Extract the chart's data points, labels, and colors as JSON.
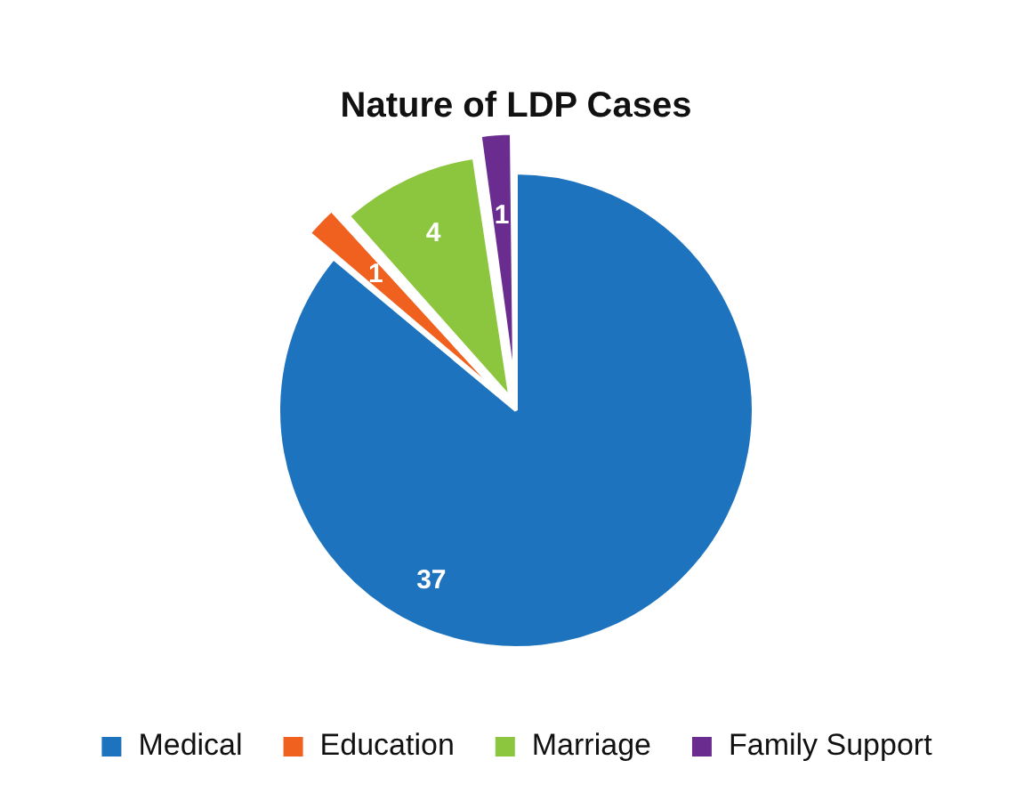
{
  "chart_data": {
    "type": "pie",
    "title": "Nature of LDP Cases",
    "categories": [
      "Medical",
      "Education",
      "Marriage",
      "Family Support"
    ],
    "values": [
      37,
      1,
      4,
      1
    ],
    "colors": [
      "#1e73be",
      "#f0601e",
      "#8cc63e",
      "#6a2d8f"
    ],
    "data_labels": true,
    "legend": "bottom"
  }
}
